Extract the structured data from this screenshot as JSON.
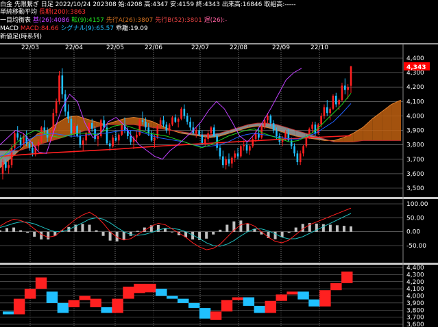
{
  "header": {
    "line1": "白金 先限繋ぎ 日足 2022/10/24 202308 始:4208 高:4347 安:4159 終:4343 出来高:16846 取組高:-----",
    "ma_label": "単純移動平均",
    "ma_value": "長期(200):3863",
    "ichi_label": "一目均衡表",
    "ichi_base": "基(26):4086",
    "ichi_conv": "転(9):4157",
    "ichi_spanA": "先行A(26):3807",
    "ichi_spanB": "先行B(52):3801",
    "ichi_lag": "遅(26):-",
    "macd_label": "MACD",
    "macd_value": "MACD:84.66",
    "macd_signal": "シグナル(9):65.57",
    "macd_hist": "乖離:19.09",
    "nline_label": "新値足(時系列)"
  },
  "months": [
    "22/03",
    "22/04",
    "22/05",
    "22/06",
    "22/07",
    "22/08",
    "22/09",
    "22/10"
  ],
  "price_axis": [
    "4,400",
    "4,300",
    "4,200",
    "4,100",
    "4,000",
    "3,900",
    "3,800",
    "3,700",
    "3,600",
    "3,500"
  ],
  "current_price": "4,343",
  "macd_axis": [
    "100.00",
    "50.00",
    "0.00",
    "-50.00"
  ],
  "nline_axis": [
    "4,400",
    "4,300",
    "4,200",
    "4,100",
    "4,000",
    "3,900",
    "3,800",
    "3,700",
    "3,600"
  ],
  "colors": {
    "up": "#ff2020",
    "down": "#20c0ff",
    "ma200": "#ff2020",
    "conv": "#20d020",
    "base": "#2060ff",
    "lag": "#c040ff",
    "cloud_up": "#c06010",
    "cloud_down": "#a0a0a0",
    "macd": "#ff2020",
    "signal": "#20c0c0",
    "hist": "#c0c0c0",
    "price_tag": "#ff0000"
  },
  "ohlc": [
    [
      3600,
      3700,
      3560,
      3680
    ],
    [
      3680,
      3700,
      3620,
      3640
    ],
    [
      3640,
      3690,
      3600,
      3660
    ],
    [
      3660,
      3800,
      3640,
      3780
    ],
    [
      3780,
      3900,
      3760,
      3880
    ],
    [
      3880,
      3930,
      3830,
      3850
    ],
    [
      3850,
      3870,
      3780,
      3800
    ],
    [
      3800,
      3880,
      3780,
      3860
    ],
    [
      3860,
      3900,
      3790,
      3810
    ],
    [
      3810,
      3840,
      3760,
      3780
    ],
    [
      3780,
      3820,
      3720,
      3740
    ],
    [
      3740,
      3800,
      3720,
      3790
    ],
    [
      3790,
      3840,
      3760,
      3820
    ],
    [
      3820,
      3930,
      3810,
      3920
    ],
    [
      3920,
      3970,
      3870,
      3900
    ],
    [
      3900,
      3920,
      3820,
      3850
    ],
    [
      3850,
      3900,
      3820,
      3880
    ],
    [
      3880,
      4050,
      3860,
      4020
    ],
    [
      4020,
      4120,
      4000,
      4100
    ],
    [
      4100,
      4310,
      4080,
      4280
    ],
    [
      4280,
      4330,
      4120,
      4150
    ],
    [
      4150,
      4180,
      4000,
      4030
    ],
    [
      4030,
      4080,
      3950,
      3980
    ],
    [
      3980,
      4000,
      3850,
      3880
    ],
    [
      3880,
      3950,
      3860,
      3930
    ],
    [
      3930,
      3940,
      3850,
      3860
    ],
    [
      3860,
      3900,
      3780,
      3800
    ],
    [
      3800,
      3850,
      3760,
      3830
    ],
    [
      3830,
      3890,
      3800,
      3880
    ],
    [
      3880,
      3960,
      3860,
      3950
    ],
    [
      3950,
      3980,
      3890,
      3910
    ],
    [
      3910,
      3930,
      3820,
      3840
    ],
    [
      3840,
      3880,
      3790,
      3860
    ],
    [
      3860,
      3980,
      3850,
      3970
    ],
    [
      3970,
      4000,
      3900,
      3920
    ],
    [
      3920,
      3940,
      3800,
      3810
    ],
    [
      3810,
      3830,
      3760,
      3790
    ],
    [
      3790,
      3870,
      3780,
      3850
    ],
    [
      3850,
      3900,
      3820,
      3830
    ],
    [
      3830,
      3880,
      3800,
      3870
    ],
    [
      3870,
      3950,
      3860,
      3940
    ],
    [
      3940,
      3990,
      3880,
      3900
    ],
    [
      3900,
      3920,
      3840,
      3860
    ],
    [
      3860,
      3900,
      3800,
      3820
    ],
    [
      3820,
      3860,
      3770,
      3850
    ],
    [
      3850,
      3900,
      3820,
      3870
    ],
    [
      3870,
      3980,
      3860,
      3970
    ],
    [
      3970,
      4030,
      3940,
      3960
    ],
    [
      3960,
      3990,
      3900,
      3920
    ],
    [
      3920,
      3950,
      3860,
      3880
    ],
    [
      3880,
      3900,
      3820,
      3830
    ],
    [
      3830,
      3870,
      3780,
      3850
    ],
    [
      3850,
      3940,
      3840,
      3930
    ],
    [
      3930,
      3990,
      3910,
      3970
    ],
    [
      3970,
      4000,
      3920,
      3940
    ],
    [
      3940,
      3960,
      3880,
      3900
    ],
    [
      3900,
      3950,
      3870,
      3940
    ],
    [
      3940,
      4000,
      3930,
      3990
    ],
    [
      3990,
      4010,
      3950,
      3960
    ],
    [
      3960,
      3990,
      3920,
      3980
    ],
    [
      3980,
      4060,
      3970,
      4050
    ],
    [
      4050,
      4080,
      3980,
      4000
    ],
    [
      4000,
      4020,
      3940,
      3960
    ],
    [
      3960,
      3990,
      3900,
      3920
    ],
    [
      3920,
      3960,
      3870,
      3880
    ],
    [
      3880,
      3920,
      3850,
      3900
    ],
    [
      3900,
      3940,
      3860,
      3870
    ],
    [
      3870,
      3900,
      3800,
      3810
    ],
    [
      3810,
      3860,
      3790,
      3840
    ],
    [
      3840,
      3900,
      3820,
      3880
    ],
    [
      3880,
      3930,
      3860,
      3920
    ],
    [
      3920,
      3940,
      3850,
      3860
    ],
    [
      3860,
      3880,
      3760,
      3780
    ],
    [
      3780,
      3800,
      3700,
      3720
    ],
    [
      3720,
      3760,
      3640,
      3660
    ],
    [
      3660,
      3720,
      3630,
      3700
    ],
    [
      3700,
      3740,
      3650,
      3670
    ],
    [
      3670,
      3720,
      3640,
      3710
    ],
    [
      3710,
      3760,
      3680,
      3740
    ],
    [
      3740,
      3780,
      3700,
      3720
    ],
    [
      3720,
      3800,
      3710,
      3790
    ],
    [
      3790,
      3830,
      3760,
      3800
    ],
    [
      3800,
      3820,
      3740,
      3760
    ],
    [
      3760,
      3800,
      3730,
      3790
    ],
    [
      3790,
      3860,
      3780,
      3840
    ],
    [
      3840,
      3900,
      3820,
      3880
    ],
    [
      3880,
      3920,
      3830,
      3850
    ],
    [
      3850,
      3940,
      3840,
      3930
    ],
    [
      3930,
      3990,
      3910,
      3970
    ],
    [
      3970,
      4020,
      3950,
      4000
    ],
    [
      4000,
      4010,
      3930,
      3950
    ],
    [
      3950,
      3970,
      3880,
      3900
    ],
    [
      3900,
      3920,
      3840,
      3860
    ],
    [
      3860,
      3880,
      3800,
      3820
    ],
    [
      3820,
      3860,
      3790,
      3840
    ],
    [
      3840,
      3900,
      3830,
      3880
    ],
    [
      3880,
      3910,
      3820,
      3830
    ],
    [
      3830,
      3850,
      3770,
      3790
    ],
    [
      3790,
      3810,
      3720,
      3740
    ],
    [
      3740,
      3760,
      3660,
      3680
    ],
    [
      3680,
      3760,
      3660,
      3740
    ],
    [
      3740,
      3800,
      3720,
      3790
    ],
    [
      3790,
      3860,
      3780,
      3850
    ],
    [
      3850,
      3920,
      3840,
      3910
    ],
    [
      3910,
      3960,
      3880,
      3940
    ],
    [
      3940,
      3960,
      3860,
      3880
    ],
    [
      3880,
      3950,
      3870,
      3940
    ],
    [
      3940,
      4020,
      3920,
      4000
    ],
    [
      4000,
      4080,
      3980,
      4060
    ],
    [
      4060,
      4110,
      4000,
      4020
    ],
    [
      4020,
      4060,
      3970,
      4050
    ],
    [
      4050,
      4150,
      4040,
      4140
    ],
    [
      4140,
      4160,
      4060,
      4080
    ],
    [
      4080,
      4120,
      4040,
      4110
    ],
    [
      4110,
      4230,
      4100,
      4210
    ],
    [
      4210,
      4260,
      4150,
      4180
    ],
    [
      4180,
      4220,
      4120,
      4200
    ],
    [
      4208,
      4347,
      4159,
      4343
    ]
  ],
  "ma200": [
    3720,
    3740,
    3755,
    3770,
    3790,
    3805,
    3820,
    3835,
    3850,
    3863
  ],
  "conv": [
    3700,
    3760,
    3820,
    3870,
    3900,
    3880,
    3860,
    3850,
    3870,
    3880,
    3880,
    3870,
    3900,
    3930,
    3940,
    3920,
    3900,
    3880,
    3870,
    3860,
    3840,
    3820,
    3800,
    3780,
    3800,
    3830,
    3860,
    3880,
    3900,
    3910,
    3880,
    3860,
    3840,
    3820,
    3830,
    3860,
    3900,
    3960,
    4020,
    4080,
    4157
  ],
  "base": [
    3720,
    3740,
    3780,
    3820,
    3860,
    3870,
    3880,
    3870,
    3860,
    3860,
    3870,
    3880,
    3880,
    3890,
    3900,
    3900,
    3890,
    3870,
    3850,
    3840,
    3830,
    3820,
    3800,
    3790,
    3790,
    3800,
    3820,
    3850,
    3870,
    3880,
    3870,
    3860,
    3850,
    3840,
    3840,
    3860,
    3880,
    3920,
    3960,
    4020,
    4086
  ],
  "lag": [
    3800,
    3850,
    3900,
    3880,
    3820,
    3750,
    3740,
    3900,
    4050,
    4150,
    4100,
    3950,
    3850,
    3880,
    3960,
    3990,
    3940,
    3860,
    3800,
    3760,
    3720,
    3700,
    3760,
    3800,
    3850,
    3900,
    3960,
    4040,
    4100,
    4050,
    3960,
    3860,
    3820,
    3880,
    3960,
    4050,
    4150,
    4250,
    4300,
    4330
  ],
  "cloudA": [
    3640,
    3700,
    3760,
    3820,
    3880,
    3900,
    3950,
    3990,
    4000,
    3980,
    3960,
    3940,
    3960,
    3980,
    3990,
    3980,
    3960,
    3930,
    3900,
    3880,
    3870,
    3860,
    3850,
    3860,
    3880,
    3900,
    3920,
    3930,
    3920,
    3900,
    3880,
    3860,
    3850,
    3840,
    3830,
    3830,
    3850,
    3880,
    3920,
    3980,
    4030,
    4080,
    4110
  ],
  "cloudB": [
    3760,
    3760,
    3760,
    3780,
    3800,
    3820,
    3840,
    3860,
    3880,
    3900,
    3920,
    3940,
    3940,
    3940,
    3940,
    3930,
    3920,
    3910,
    3900,
    3890,
    3880,
    3870,
    3870,
    3880,
    3900,
    3920,
    3940,
    3950,
    3950,
    3940,
    3920,
    3900,
    3880,
    3860,
    3840,
    3820,
    3820,
    3820,
    3830,
    3830,
    3830,
    3830,
    3830
  ],
  "macd": [
    20,
    35,
    45,
    40,
    30,
    10,
    -10,
    -20,
    -15,
    5,
    25,
    45,
    60,
    70,
    55,
    30,
    0,
    -20,
    -30,
    -25,
    -10,
    5,
    20,
    30,
    25,
    10,
    -5,
    -20,
    -40,
    -55,
    -65,
    -60,
    -45,
    -20,
    5,
    25,
    30,
    20,
    0,
    -20,
    -35,
    -40,
    -30,
    -10,
    10,
    25,
    35,
    45,
    55,
    65,
    75,
    84.66
  ],
  "signal": [
    15,
    22,
    30,
    35,
    34,
    28,
    18,
    8,
    0,
    0,
    8,
    20,
    32,
    45,
    50,
    45,
    32,
    15,
    0,
    -10,
    -13,
    -10,
    -3,
    6,
    12,
    12,
    8,
    0,
    -12,
    -25,
    -40,
    -50,
    -52,
    -45,
    -32,
    -15,
    0,
    10,
    10,
    3,
    -8,
    -20,
    -26,
    -25,
    -18,
    -6,
    6,
    18,
    30,
    42,
    54,
    65.57
  ],
  "nline": [
    {
      "t": "down",
      "o": 3780,
      "c": 3740
    },
    {
      "t": "up",
      "o": 3740,
      "c": 3960
    },
    {
      "t": "up",
      "o": 3960,
      "c": 4100
    },
    {
      "t": "up",
      "o": 4100,
      "c": 4260
    },
    {
      "t": "down",
      "o": 4060,
      "c": 3900
    },
    {
      "t": "down",
      "o": 3900,
      "c": 3760
    },
    {
      "t": "up",
      "o": 3840,
      "c": 3940
    },
    {
      "t": "up",
      "o": 3940,
      "c": 4000
    },
    {
      "t": "up",
      "o": 3840,
      "c": 3960
    },
    {
      "t": "down",
      "o": 3840,
      "c": 3760
    },
    {
      "t": "up",
      "o": 3760,
      "c": 3960
    },
    {
      "t": "up",
      "o": 3960,
      "c": 4130
    },
    {
      "t": "up",
      "o": 4040,
      "c": 4170
    },
    {
      "t": "up",
      "o": 4050,
      "c": 4170
    },
    {
      "t": "down",
      "o": 4100,
      "c": 4000
    },
    {
      "t": "down",
      "o": 4000,
      "c": 3960
    },
    {
      "t": "down",
      "o": 3960,
      "c": 3900
    },
    {
      "t": "down",
      "o": 3900,
      "c": 3830
    },
    {
      "t": "down",
      "o": 3830,
      "c": 3680
    },
    {
      "t": "up",
      "o": 3660,
      "c": 3780
    },
    {
      "t": "up",
      "o": 3780,
      "c": 3940
    },
    {
      "t": "up",
      "o": 3940,
      "c": 3980
    },
    {
      "t": "down",
      "o": 3980,
      "c": 3860
    },
    {
      "t": "down",
      "o": 3860,
      "c": 3760
    },
    {
      "t": "up",
      "o": 3760,
      "c": 3930
    },
    {
      "t": "up",
      "o": 3930,
      "c": 4020
    },
    {
      "t": "up",
      "o": 4020,
      "c": 4060
    },
    {
      "t": "down",
      "o": 4060,
      "c": 3950
    },
    {
      "t": "down",
      "o": 3950,
      "c": 3850
    },
    {
      "t": "up",
      "o": 3850,
      "c": 4080
    },
    {
      "t": "up",
      "o": 4080,
      "c": 4180
    },
    {
      "t": "up",
      "o": 4180,
      "c": 4343
    }
  ]
}
